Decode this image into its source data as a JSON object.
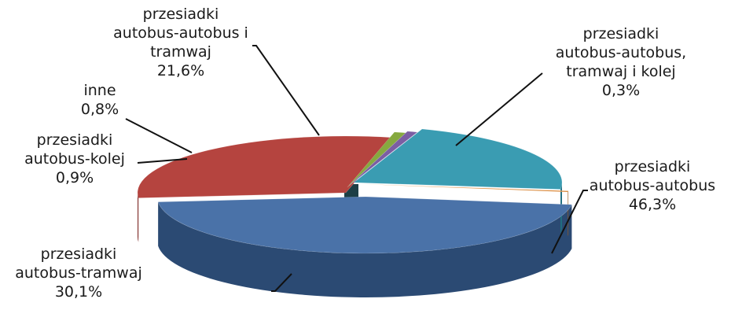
{
  "chart_data": {
    "type": "pie",
    "title": "",
    "slices": [
      {
        "name_lines": [
          "przesiadki",
          "autobus-autobus"
        ],
        "value": 46.3,
        "value_label": "46,3%",
        "color": "#4a72a8",
        "side": "#2b4a73"
      },
      {
        "name_lines": [
          "przesiadki",
          "autobus-tramwaj"
        ],
        "value": 30.1,
        "value_label": "30,1%",
        "color": "#b5443f",
        "side": "#7f2c29"
      },
      {
        "name_lines": [
          "przesiadki",
          "autobus-kolej"
        ],
        "value": 0.9,
        "value_label": "0,9%",
        "color": "#86a93f",
        "side": "#5d7a28"
      },
      {
        "name_lines": [
          "inne"
        ],
        "value": 0.8,
        "value_label": "0,8%",
        "color": "#7b5ea3",
        "side": "#574075"
      },
      {
        "name_lines": [
          "przesiadki",
          "autobus-autobus i",
          "tramwaj"
        ],
        "value": 21.6,
        "value_label": "21,6%",
        "color": "#3a9cb2",
        "side": "#1f6e80"
      },
      {
        "name_lines": [
          "przesiadki",
          "autobus-autobus,",
          "tramwaj i kolej"
        ],
        "value": 0.3,
        "value_label": "0,3%",
        "color": "#d7802c",
        "side": "#9a5a1b"
      }
    ]
  }
}
